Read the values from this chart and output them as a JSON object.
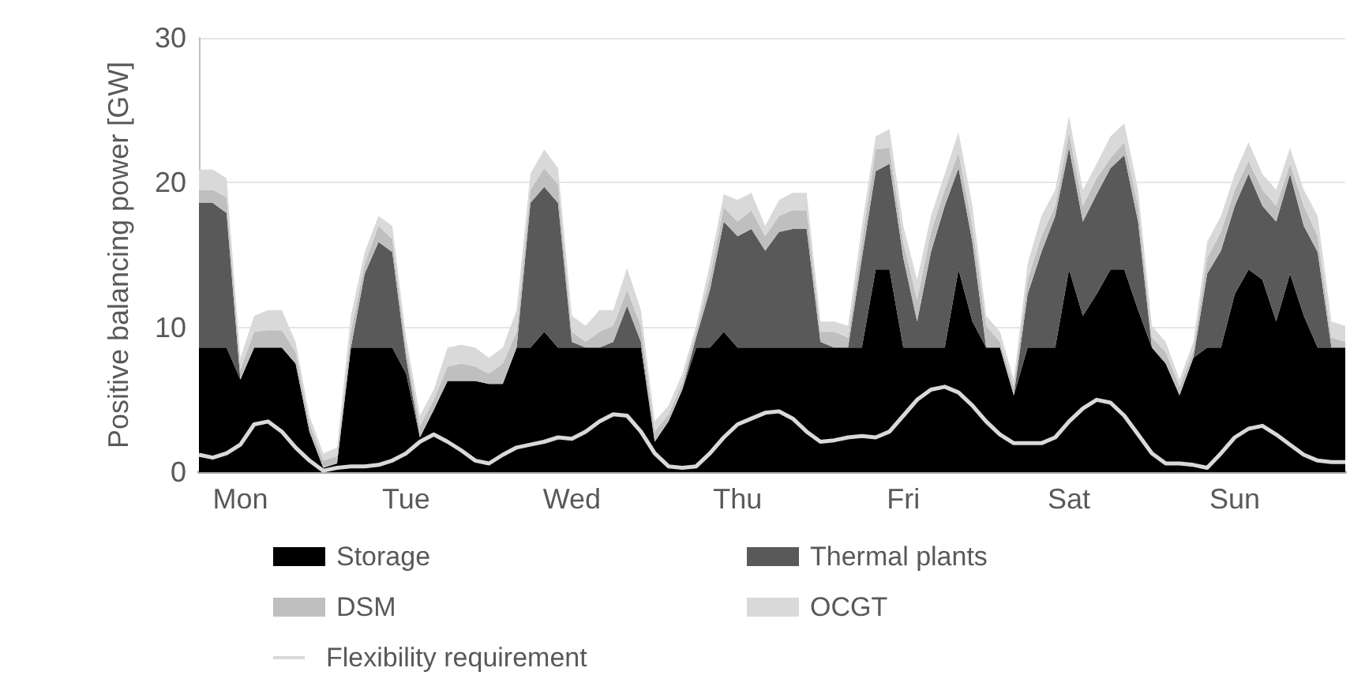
{
  "chart_data": {
    "type": "area",
    "ylabel": "Positive balancing power [GW]",
    "stacked": true,
    "grid": "y",
    "legend": "bottom",
    "marker": "none",
    "line_style": "solid",
    "ylim": [
      0,
      30
    ],
    "yticks": [
      0,
      10,
      20,
      30
    ],
    "categories": [
      null,
      null,
      null,
      "Mon",
      null,
      null,
      null,
      null,
      null,
      null,
      null,
      null,
      null,
      null,
      null,
      "Tue",
      null,
      null,
      null,
      null,
      null,
      null,
      null,
      null,
      null,
      null,
      null,
      "Wed",
      null,
      null,
      null,
      null,
      null,
      null,
      null,
      null,
      null,
      null,
      null,
      "Thu",
      null,
      null,
      null,
      null,
      null,
      null,
      null,
      null,
      null,
      null,
      null,
      "Fri",
      null,
      null,
      null,
      null,
      null,
      null,
      null,
      null,
      null,
      null,
      null,
      "Sat",
      null,
      null,
      null,
      null,
      null,
      null,
      null,
      null,
      null,
      null,
      null,
      "Sun",
      null,
      null,
      null,
      null,
      null,
      null,
      null,
      null
    ],
    "series": [
      {
        "name": "Storage",
        "color": "#000000",
        "values": [
          8.6,
          8.6,
          8.6,
          6.4,
          8.6,
          8.6,
          8.6,
          7.5,
          2.8,
          0.3,
          0.6,
          8.6,
          8.6,
          8.6,
          8.6,
          6.8,
          2.4,
          4.3,
          6.3,
          6.3,
          6.3,
          6.1,
          6.1,
          8.6,
          8.6,
          9.7,
          8.6,
          8.6,
          8.6,
          8.6,
          8.6,
          8.6,
          8.6,
          2.1,
          3.5,
          5.7,
          8.6,
          8.6,
          9.7,
          8.6,
          8.6,
          8.6,
          8.6,
          8.6,
          8.6,
          8.6,
          8.6,
          8.6,
          8.6,
          14.0,
          14.0,
          8.6,
          8.6,
          8.6,
          8.6,
          14.0,
          10.4,
          8.6,
          8.6,
          5.3,
          8.6,
          8.6,
          8.6,
          14.0,
          10.8,
          12.3,
          14.0,
          14.0,
          11.2,
          8.6,
          7.5,
          5.3,
          7.9,
          8.6,
          8.6,
          12.3,
          14.0,
          13.3,
          10.4,
          13.7,
          10.8,
          8.6,
          8.6,
          8.6
        ]
      },
      {
        "name": "Thermal plants",
        "color": "#595959",
        "values": [
          10.0,
          10.0,
          9.3,
          0,
          0,
          0,
          0,
          0,
          0,
          0,
          0,
          0,
          5.1,
          7.3,
          6.6,
          1.1,
          0,
          0,
          0,
          0,
          0,
          0,
          0,
          0,
          10.0,
          10.0,
          10.0,
          0.4,
          0,
          0,
          0.4,
          2.9,
          0.4,
          0,
          0,
          0,
          0.7,
          4.0,
          7.6,
          7.7,
          8.2,
          6.7,
          8.0,
          8.2,
          8.2,
          0.4,
          0,
          0,
          6.2,
          6.8,
          7.3,
          6.2,
          1.8,
          6.6,
          9.8,
          7.0,
          5.5,
          0,
          0,
          0,
          3.7,
          6.6,
          9.1,
          8.4,
          6.5,
          6.9,
          7.0,
          7.9,
          6.1,
          0,
          0,
          0,
          0,
          5.1,
          6.7,
          6.1,
          6.6,
          5.1,
          6.9,
          6.9,
          6.2,
          6.6,
          0,
          0
        ]
      },
      {
        "name": "DSM",
        "color": "#bfbfbf",
        "values": [
          0.9,
          0.9,
          1.1,
          0.7,
          1.1,
          1.2,
          1.2,
          0.8,
          0.6,
          0.5,
          0.5,
          1.1,
          0.7,
          1.1,
          0.9,
          0.7,
          0.8,
          0.7,
          1.0,
          1.2,
          1.0,
          0.7,
          1.4,
          1.1,
          0.9,
          1.3,
          1.3,
          0.7,
          0.4,
          1.1,
          1.1,
          1.1,
          1.1,
          0.7,
          0.5,
          0.5,
          0.4,
          0.9,
          1.0,
          1.0,
          1.3,
          1.0,
          1.1,
          1.3,
          1.3,
          0.7,
          1.1,
          0.7,
          1.1,
          1.5,
          1.1,
          1.1,
          1.5,
          1.4,
          1.1,
          1.1,
          1.1,
          1.5,
          0.4,
          0.6,
          1.0,
          1.1,
          0.7,
          1.1,
          1.1,
          1.1,
          0.7,
          0.9,
          1.1,
          0.7,
          0.8,
          0.6,
          0.5,
          1.1,
          1.3,
          1.1,
          0.9,
          1.1,
          1.1,
          0.7,
          1.4,
          1.1,
          0.7,
          0.4
        ]
      },
      {
        "name": "OCGT",
        "color": "#d9d9d9",
        "values": [
          1.4,
          1.4,
          1.3,
          0.8,
          1.1,
          1.4,
          1.4,
          0.7,
          0.5,
          0.5,
          0.6,
          1.1,
          0.8,
          0.7,
          0.9,
          0.7,
          0.7,
          0.7,
          1.3,
          1.3,
          1.3,
          1.1,
          1.1,
          1.5,
          1.1,
          1.3,
          1.1,
          1.1,
          1.1,
          1.5,
          1.1,
          1.5,
          1.1,
          0.7,
          0.6,
          0.6,
          0.4,
          0.9,
          0.9,
          1.5,
          1.2,
          0.7,
          1.1,
          1.2,
          1.2,
          0.7,
          0.7,
          0.8,
          1.1,
          0.9,
          1.3,
          1.1,
          1.4,
          1.1,
          1.1,
          1.4,
          1.4,
          0.7,
          0.7,
          0.5,
          1.1,
          1.4,
          1.1,
          1.1,
          1.1,
          1.0,
          1.5,
          1.3,
          1.1,
          0.8,
          0.7,
          0.5,
          0.6,
          1.1,
          1.1,
          1.1,
          1.3,
          1.1,
          1.1,
          1.1,
          1.1,
          1.4,
          1.1,
          1.1
        ]
      },
      {
        "name": "Flexibility requirement",
        "type": "line",
        "color": "#d9d9d9",
        "values": [
          1.2,
          1.0,
          1.3,
          1.9,
          3.3,
          3.5,
          2.8,
          1.7,
          0.8,
          0.1,
          0.3,
          0.4,
          0.4,
          0.5,
          0.8,
          1.3,
          2.1,
          2.6,
          2.1,
          1.5,
          0.8,
          0.6,
          1.2,
          1.7,
          1.9,
          2.1,
          2.4,
          2.3,
          2.8,
          3.5,
          4.0,
          3.9,
          2.8,
          1.3,
          0.4,
          0.3,
          0.4,
          1.3,
          2.4,
          3.3,
          3.7,
          4.1,
          4.2,
          3.7,
          2.8,
          2.1,
          2.2,
          2.4,
          2.5,
          2.4,
          2.8,
          3.9,
          5.0,
          5.7,
          5.9,
          5.5,
          4.6,
          3.5,
          2.6,
          2.0,
          2.0,
          2.0,
          2.4,
          3.5,
          4.4,
          5.0,
          4.8,
          3.9,
          2.6,
          1.3,
          0.6,
          0.6,
          0.5,
          0.3,
          1.3,
          2.4,
          3.0,
          3.2,
          2.6,
          1.9,
          1.2,
          0.8,
          0.7,
          0.7
        ]
      }
    ]
  }
}
